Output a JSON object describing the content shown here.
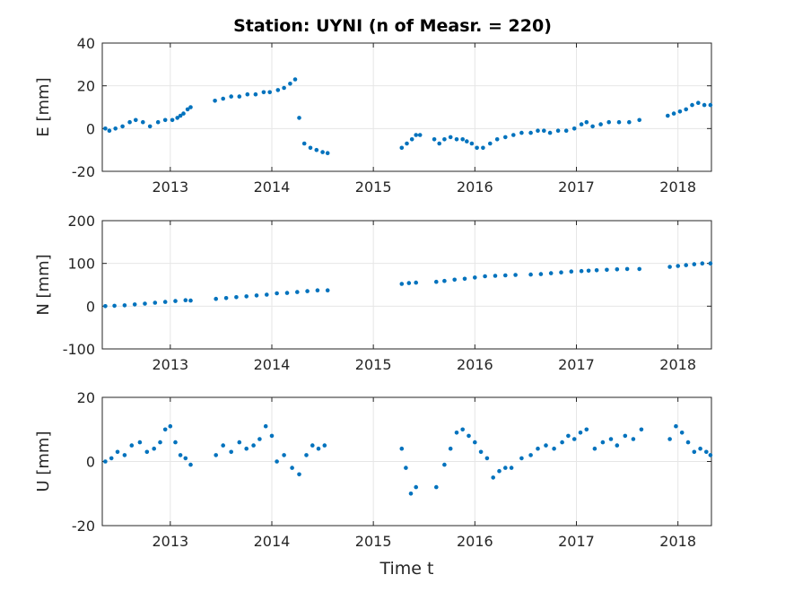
{
  "title": "Station: UYNI (n of Measr. = 220)",
  "xlabel": "Time t",
  "x_ticks": [
    2013,
    2014,
    2015,
    2016,
    2017,
    2018
  ],
  "x_tick_labels": [
    "2013",
    "2014",
    "2015",
    "2016",
    "2017",
    "2018"
  ],
  "colors": {
    "marker": "#0072BD",
    "grid": "#e6e6e6",
    "axis": "#262626"
  },
  "chart_data": [
    {
      "type": "scatter",
      "ylabel": "E [mm]",
      "xlim": [
        2012.33,
        2018.33
      ],
      "ylim": [
        -20,
        40
      ],
      "yticks": [
        -20,
        0,
        20,
        40
      ],
      "ytick_labels": [
        "-20",
        "0",
        "20",
        "40"
      ],
      "grid": true,
      "series": [
        {
          "x": [
            2012.36,
            2012.4,
            2012.46,
            2012.53,
            2012.6,
            2012.66,
            2012.73,
            2012.8,
            2012.88,
            2012.95,
            2013.02,
            2013.07,
            2013.1,
            2013.13,
            2013.17,
            2013.2,
            2013.44,
            2013.52,
            2013.6,
            2013.68,
            2013.76,
            2013.84,
            2013.92,
            2013.98,
            2014.06,
            2014.12,
            2014.18,
            2014.23,
            2014.27,
            2014.32,
            2014.38,
            2014.44,
            2014.5,
            2014.55,
            2015.28,
            2015.33,
            2015.38,
            2015.42,
            2015.46,
            2015.6,
            2015.65,
            2015.7,
            2015.76,
            2015.82,
            2015.88,
            2015.92,
            2015.97,
            2016.02,
            2016.08,
            2016.15,
            2016.22,
            2016.3,
            2016.38,
            2016.46,
            2016.55,
            2016.62,
            2016.68,
            2016.74,
            2016.82,
            2016.9,
            2016.98,
            2017.05,
            2017.1,
            2017.16,
            2017.24,
            2017.32,
            2017.42,
            2017.52,
            2017.62,
            2017.9,
            2017.96,
            2018.02,
            2018.08,
            2018.14,
            2018.2,
            2018.26,
            2018.32
          ],
          "y": [
            0,
            -1,
            0,
            1,
            3,
            4,
            3,
            1,
            3,
            4,
            4,
            5,
            6,
            7,
            9,
            10,
            13,
            14,
            15,
            15,
            16,
            16,
            17,
            17,
            18,
            19,
            21,
            23,
            5,
            -7,
            -9,
            -10,
            -11,
            -11.5,
            -9,
            -7,
            -5,
            -3,
            -3,
            -5,
            -7,
            -5,
            -4,
            -5,
            -5,
            -6,
            -7,
            -9,
            -9,
            -7,
            -5,
            -4,
            -3,
            -2,
            -2,
            -1,
            -1,
            -2,
            -1,
            -1,
            0,
            2,
            3,
            1,
            2,
            3,
            3,
            3,
            4,
            6,
            7,
            8,
            9,
            11,
            12,
            11,
            11
          ]
        }
      ]
    },
    {
      "type": "scatter",
      "ylabel": "N [mm]",
      "xlim": [
        2012.33,
        2018.33
      ],
      "ylim": [
        -100,
        200
      ],
      "yticks": [
        -100,
        0,
        100,
        200
      ],
      "ytick_labels": [
        "-100",
        "0",
        "100",
        "200"
      ],
      "grid": true,
      "series": [
        {
          "x": [
            2012.36,
            2012.45,
            2012.55,
            2012.65,
            2012.75,
            2012.85,
            2012.95,
            2013.05,
            2013.15,
            2013.2,
            2013.45,
            2013.55,
            2013.65,
            2013.75,
            2013.85,
            2013.95,
            2014.05,
            2014.15,
            2014.25,
            2014.35,
            2014.45,
            2014.55,
            2015.28,
            2015.35,
            2015.42,
            2015.62,
            2015.7,
            2015.8,
            2015.9,
            2016.0,
            2016.1,
            2016.2,
            2016.3,
            2016.4,
            2016.55,
            2016.65,
            2016.75,
            2016.85,
            2016.95,
            2017.05,
            2017.12,
            2017.2,
            2017.3,
            2017.4,
            2017.5,
            2017.62,
            2017.92,
            2018.0,
            2018.08,
            2018.16,
            2018.24,
            2018.32
          ],
          "y": [
            0,
            1,
            2,
            4,
            6,
            8,
            10,
            12,
            14,
            13,
            17,
            19,
            21,
            23,
            25,
            27,
            30,
            31,
            33,
            35,
            37,
            37,
            52,
            54,
            55,
            57,
            59,
            62,
            64,
            67,
            70,
            71,
            72,
            73,
            74,
            75,
            77,
            79,
            81,
            82,
            83,
            84,
            85,
            86,
            87,
            87,
            92,
            94,
            96,
            98,
            100,
            100
          ]
        }
      ]
    },
    {
      "type": "scatter",
      "ylabel": "U [mm]",
      "xlim": [
        2012.33,
        2018.33
      ],
      "ylim": [
        -20,
        20
      ],
      "yticks": [
        -20,
        0,
        20
      ],
      "ytick_labels": [
        "-20",
        "0",
        "20"
      ],
      "grid": true,
      "series": [
        {
          "x": [
            2012.36,
            2012.42,
            2012.48,
            2012.55,
            2012.62,
            2012.7,
            2012.77,
            2012.84,
            2012.9,
            2012.95,
            2013.0,
            2013.05,
            2013.1,
            2013.15,
            2013.2,
            2013.45,
            2013.52,
            2013.6,
            2013.68,
            2013.75,
            2013.82,
            2013.88,
            2013.94,
            2014.0,
            2014.05,
            2014.12,
            2014.2,
            2014.27,
            2014.34,
            2014.4,
            2014.46,
            2014.52,
            2015.28,
            2015.32,
            2015.37,
            2015.42,
            2015.62,
            2015.7,
            2015.76,
            2015.82,
            2015.88,
            2015.94,
            2016.0,
            2016.06,
            2016.12,
            2016.18,
            2016.24,
            2016.3,
            2016.36,
            2016.46,
            2016.55,
            2016.62,
            2016.7,
            2016.78,
            2016.86,
            2016.92,
            2016.98,
            2017.04,
            2017.1,
            2017.18,
            2017.26,
            2017.34,
            2017.4,
            2017.48,
            2017.56,
            2017.64,
            2017.92,
            2017.98,
            2018.04,
            2018.1,
            2018.16,
            2018.22,
            2018.28,
            2018.32
          ],
          "y": [
            0,
            1,
            3,
            2,
            5,
            6,
            3,
            4,
            6,
            10,
            11,
            6,
            2,
            1,
            -1,
            2,
            5,
            3,
            6,
            4,
            5,
            7,
            11,
            8,
            0,
            2,
            -2,
            -4,
            2,
            5,
            4,
            5,
            4,
            -2,
            -10,
            -8,
            -8,
            -1,
            4,
            9,
            10,
            8,
            6,
            3,
            1,
            -5,
            -3,
            -2,
            -2,
            1,
            2,
            4,
            5,
            4,
            6,
            8,
            7,
            9,
            10,
            4,
            6,
            7,
            5,
            8,
            7,
            10,
            7,
            11,
            9,
            6,
            3,
            4,
            3,
            2
          ]
        }
      ]
    }
  ]
}
